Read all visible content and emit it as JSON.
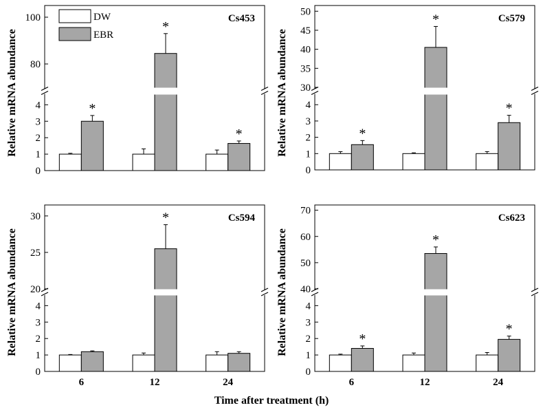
{
  "figure": {
    "xlabel": "Time after treatment (h)",
    "ylabel": "Relative mRNA abundance"
  },
  "legend": {
    "items": [
      {
        "label": "DW",
        "color": "#ffffff"
      },
      {
        "label": "EBR",
        "color": "#a6a6a6"
      }
    ]
  },
  "colors": {
    "DW": "#ffffff",
    "EBR": "#a6a6a6",
    "axis": "#000000"
  },
  "chart_data": [
    {
      "type": "bar",
      "title": "Cs453",
      "categories": [
        "6",
        "12",
        "24"
      ],
      "axis_break": true,
      "lower_ylim": [
        0,
        4.6
      ],
      "lower_ticks": [
        0,
        1,
        2,
        3,
        4
      ],
      "upper_ylim": [
        70,
        105
      ],
      "upper_ticks": [
        80,
        100
      ],
      "series": [
        {
          "name": "DW",
          "values": [
            1.0,
            1.0,
            1.0
          ],
          "errors": [
            0.05,
            0.32,
            0.25
          ]
        },
        {
          "name": "EBR",
          "values": [
            3.0,
            84.5,
            1.65
          ],
          "errors": [
            0.35,
            8.5,
            0.15
          ]
        }
      ],
      "significant": [
        true,
        true,
        true
      ]
    },
    {
      "type": "bar",
      "title": "Cs579",
      "categories": [
        "6",
        "12",
        "24"
      ],
      "axis_break": true,
      "lower_ylim": [
        0,
        4.6
      ],
      "lower_ticks": [
        0,
        1,
        2,
        3,
        4
      ],
      "upper_ylim": [
        30,
        51.5
      ],
      "upper_ticks": [
        30,
        35,
        40,
        45,
        50
      ],
      "series": [
        {
          "name": "DW",
          "values": [
            1.0,
            1.0,
            1.0
          ],
          "errors": [
            0.12,
            0.05,
            0.12
          ]
        },
        {
          "name": "EBR",
          "values": [
            1.55,
            40.5,
            2.9
          ],
          "errors": [
            0.25,
            5.5,
            0.45
          ]
        }
      ],
      "significant": [
        true,
        true,
        true
      ]
    },
    {
      "type": "bar",
      "title": "Cs594",
      "categories": [
        "6",
        "12",
        "24"
      ],
      "axis_break": true,
      "lower_ylim": [
        0,
        4.6
      ],
      "lower_ticks": [
        0,
        1,
        2,
        3,
        4
      ],
      "upper_ylim": [
        20,
        31.5
      ],
      "upper_ticks": [
        20,
        25,
        30
      ],
      "series": [
        {
          "name": "DW",
          "values": [
            1.0,
            1.0,
            1.0
          ],
          "errors": [
            0.03,
            0.12,
            0.2
          ]
        },
        {
          "name": "EBR",
          "values": [
            1.2,
            25.5,
            1.1
          ],
          "errors": [
            0.05,
            3.3,
            0.1
          ]
        }
      ],
      "significant": [
        false,
        true,
        false
      ]
    },
    {
      "type": "bar",
      "title": "Cs623",
      "categories": [
        "6",
        "12",
        "24"
      ],
      "axis_break": true,
      "lower_ylim": [
        0,
        4.6
      ],
      "lower_ticks": [
        0,
        1,
        2,
        3,
        4
      ],
      "upper_ylim": [
        40,
        72
      ],
      "upper_ticks": [
        40,
        50,
        60,
        70
      ],
      "series": [
        {
          "name": "DW",
          "values": [
            1.0,
            1.0,
            1.0
          ],
          "errors": [
            0.05,
            0.12,
            0.15
          ]
        },
        {
          "name": "EBR",
          "values": [
            1.4,
            53.5,
            1.95
          ],
          "errors": [
            0.15,
            2.5,
            0.2
          ]
        }
      ],
      "significant": [
        true,
        true,
        true
      ]
    }
  ]
}
